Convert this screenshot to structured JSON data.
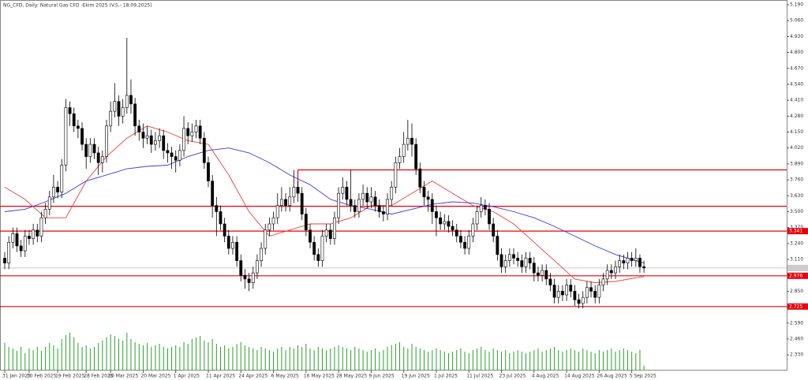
{
  "chart_data": {
    "type": "candlestick",
    "title": "NG_CFD, Daily:  Natural Gas CFD -Ekim 2025 (V.S.- 18.09.2025)",
    "categories": [
      "31 Jan 2025",
      null,
      null,
      null,
      null,
      null,
      "10 Feb 2025",
      null,
      null,
      null,
      null,
      null,
      null,
      "19 Feb 2025",
      null,
      null,
      null,
      null,
      null,
      null,
      "28 Feb 2025",
      null,
      null,
      null,
      null,
      null,
      "10 Mar 2025",
      null,
      null,
      null,
      null,
      null,
      null,
      null,
      "20 Mar 2025",
      null,
      null,
      null,
      null,
      null,
      null,
      null,
      "1 Apr 2025",
      null,
      null,
      null,
      null,
      null,
      null,
      null,
      "11 Apr 2025",
      null,
      null,
      null,
      null,
      null,
      null,
      null,
      "24 Apr 2025",
      null,
      null,
      null,
      null,
      null,
      null,
      null,
      "6 May 2025",
      null,
      null,
      null,
      null,
      null,
      null,
      null,
      "16 May 2025",
      null,
      null,
      null,
      null,
      null,
      null,
      null,
      "28 May 2025",
      null,
      null,
      null,
      null,
      null,
      null,
      null,
      "9 Jun 2025",
      null,
      null,
      null,
      null,
      null,
      null,
      null,
      "19 Jun 2025",
      null,
      null,
      null,
      null,
      null,
      null,
      null,
      "1 Jul 2025",
      null,
      null,
      null,
      null,
      null,
      null,
      null,
      "11 Jul 2025",
      null,
      null,
      null,
      null,
      null,
      null,
      null,
      "23 Jul 2025",
      null,
      null,
      null,
      null,
      null,
      null,
      null,
      "4 Aug 2025",
      null,
      null,
      null,
      null,
      null,
      null,
      null,
      "14 Aug 2025",
      null,
      null,
      null,
      null,
      null,
      null,
      null,
      "26 Aug 2025",
      null,
      null,
      null,
      null,
      null,
      null,
      null,
      "5 Sep 2025",
      null,
      null,
      null
    ],
    "ohlc": [
      [
        3.12,
        3.17,
        3.03,
        3.08
      ],
      [
        3.08,
        3.3,
        3.03,
        3.25
      ],
      [
        3.25,
        3.37,
        3.2,
        3.32
      ],
      [
        3.32,
        3.37,
        3.17,
        3.22
      ],
      [
        3.22,
        3.27,
        3.13,
        3.18
      ],
      [
        3.18,
        3.35,
        3.13,
        3.3
      ],
      [
        3.3,
        3.35,
        3.23,
        3.28
      ],
      [
        3.28,
        3.4,
        3.23,
        3.35
      ],
      [
        3.35,
        3.4,
        3.25,
        3.3
      ],
      [
        3.3,
        3.5,
        3.25,
        3.45
      ],
      [
        3.45,
        3.57,
        3.4,
        3.52
      ],
      [
        3.52,
        3.67,
        3.47,
        3.62
      ],
      [
        3.62,
        3.8,
        3.57,
        3.7
      ],
      [
        3.7,
        3.75,
        3.61,
        3.66
      ],
      [
        3.66,
        3.93,
        3.61,
        3.88
      ],
      [
        3.88,
        4.42,
        3.83,
        4.35
      ],
      [
        4.35,
        4.4,
        4.2,
        4.3
      ],
      [
        4.3,
        4.35,
        4.15,
        4.2
      ],
      [
        4.2,
        4.25,
        4.1,
        4.18
      ],
      [
        4.18,
        4.23,
        4.0,
        4.05
      ],
      [
        4.05,
        4.1,
        3.85,
        3.95
      ],
      [
        3.95,
        4.1,
        3.9,
        4.05
      ],
      [
        4.05,
        4.1,
        3.93,
        3.98
      ],
      [
        3.98,
        4.03,
        3.8,
        3.9
      ],
      [
        3.9,
        4.0,
        3.82,
        3.95
      ],
      [
        3.95,
        4.25,
        3.9,
        4.2
      ],
      [
        4.2,
        4.4,
        4.15,
        4.32
      ],
      [
        4.32,
        4.55,
        4.27,
        4.4
      ],
      [
        4.4,
        4.45,
        4.2,
        4.28
      ],
      [
        4.28,
        4.42,
        4.22,
        4.35
      ],
      [
        4.35,
        4.92,
        4.3,
        4.45
      ],
      [
        4.45,
        4.58,
        4.3,
        4.38
      ],
      [
        4.38,
        4.43,
        4.12,
        4.2
      ],
      [
        4.2,
        4.25,
        4.08,
        4.15
      ],
      [
        4.15,
        4.22,
        4.02,
        4.1
      ],
      [
        4.1,
        4.2,
        4.05,
        4.12
      ],
      [
        4.12,
        4.17,
        3.98,
        4.05
      ],
      [
        4.05,
        4.15,
        4.0,
        4.08
      ],
      [
        4.08,
        4.18,
        4.02,
        4.12
      ],
      [
        4.12,
        4.17,
        3.93,
        4.0
      ],
      [
        4.0,
        4.06,
        3.9,
        3.98
      ],
      [
        3.98,
        4.03,
        3.85,
        3.95
      ],
      [
        3.95,
        4.0,
        3.82,
        3.92
      ],
      [
        3.92,
        4.05,
        3.87,
        4.0
      ],
      [
        4.0,
        4.28,
        3.95,
        4.18
      ],
      [
        4.18,
        4.23,
        4.05,
        4.12
      ],
      [
        4.12,
        4.22,
        4.07,
        4.15
      ],
      [
        4.15,
        4.25,
        4.1,
        4.2
      ],
      [
        4.2,
        4.25,
        4.05,
        4.1
      ],
      [
        4.1,
        4.15,
        3.85,
        3.9
      ],
      [
        3.9,
        3.95,
        3.7,
        3.75
      ],
      [
        3.75,
        3.8,
        3.45,
        3.55
      ],
      [
        3.55,
        3.62,
        3.3,
        3.5
      ],
      [
        3.5,
        3.55,
        3.35,
        3.4
      ],
      [
        3.4,
        3.45,
        3.25,
        3.3
      ],
      [
        3.3,
        3.35,
        3.15,
        3.2
      ],
      [
        3.2,
        3.3,
        3.15,
        3.25
      ],
      [
        3.25,
        3.3,
        3.05,
        3.1
      ],
      [
        3.1,
        3.15,
        2.93,
        2.98
      ],
      [
        2.98,
        3.03,
        2.87,
        2.95
      ],
      [
        2.95,
        3.0,
        2.85,
        2.92
      ],
      [
        2.92,
        3.05,
        2.87,
        3.0
      ],
      [
        3.0,
        3.15,
        2.95,
        3.1
      ],
      [
        3.1,
        3.25,
        3.05,
        3.2
      ],
      [
        3.2,
        3.4,
        3.15,
        3.35
      ],
      [
        3.35,
        3.45,
        3.3,
        3.4
      ],
      [
        3.4,
        3.5,
        3.35,
        3.45
      ],
      [
        3.45,
        3.65,
        3.4,
        3.55
      ],
      [
        3.55,
        3.7,
        3.5,
        3.6
      ],
      [
        3.6,
        3.65,
        3.5,
        3.55
      ],
      [
        3.55,
        3.7,
        3.5,
        3.62
      ],
      [
        3.62,
        3.84,
        3.57,
        3.7
      ],
      [
        3.7,
        3.75,
        3.58,
        3.65
      ],
      [
        3.65,
        3.7,
        3.43,
        3.48
      ],
      [
        3.48,
        3.53,
        3.3,
        3.35
      ],
      [
        3.35,
        3.4,
        3.2,
        3.25
      ],
      [
        3.25,
        3.3,
        3.1,
        3.15
      ],
      [
        3.15,
        3.2,
        3.05,
        3.1
      ],
      [
        3.1,
        3.35,
        3.05,
        3.3
      ],
      [
        3.3,
        3.4,
        3.25,
        3.35
      ],
      [
        3.35,
        3.4,
        3.23,
        3.28
      ],
      [
        3.28,
        3.5,
        3.23,
        3.45
      ],
      [
        3.45,
        3.7,
        3.4,
        3.65
      ],
      [
        3.65,
        3.78,
        3.6,
        3.7
      ],
      [
        3.7,
        3.75,
        3.55,
        3.6
      ],
      [
        3.6,
        3.84,
        3.5,
        3.55
      ],
      [
        3.55,
        3.6,
        3.45,
        3.5
      ],
      [
        3.5,
        3.65,
        3.45,
        3.6
      ],
      [
        3.6,
        3.72,
        3.55,
        3.65
      ],
      [
        3.65,
        3.7,
        3.53,
        3.58
      ],
      [
        3.58,
        3.7,
        3.53,
        3.62
      ],
      [
        3.62,
        3.67,
        3.5,
        3.55
      ],
      [
        3.55,
        3.6,
        3.45,
        3.5
      ],
      [
        3.5,
        3.55,
        3.42,
        3.48
      ],
      [
        3.48,
        3.65,
        3.43,
        3.6
      ],
      [
        3.6,
        3.75,
        3.55,
        3.7
      ],
      [
        3.7,
        3.95,
        3.65,
        3.9
      ],
      [
        3.9,
        4.02,
        3.85,
        3.95
      ],
      [
        3.95,
        4.15,
        3.9,
        4.05
      ],
      [
        4.05,
        4.25,
        4.0,
        4.1
      ],
      [
        4.1,
        4.22,
        3.95,
        4.05
      ],
      [
        4.05,
        4.1,
        3.8,
        3.85
      ],
      [
        3.85,
        3.9,
        3.65,
        3.7
      ],
      [
        3.7,
        3.75,
        3.55,
        3.62
      ],
      [
        3.62,
        3.67,
        3.5,
        3.6
      ],
      [
        3.6,
        3.65,
        3.4,
        3.5
      ],
      [
        3.5,
        3.55,
        3.3,
        3.45
      ],
      [
        3.45,
        3.5,
        3.35,
        3.4
      ],
      [
        3.4,
        3.48,
        3.35,
        3.42
      ],
      [
        3.42,
        3.47,
        3.33,
        3.38
      ],
      [
        3.38,
        3.43,
        3.3,
        3.35
      ],
      [
        3.35,
        3.4,
        3.25,
        3.3
      ],
      [
        3.3,
        3.35,
        3.2,
        3.25
      ],
      [
        3.25,
        3.3,
        3.15,
        3.2
      ],
      [
        3.2,
        3.35,
        3.15,
        3.3
      ],
      [
        3.3,
        3.45,
        3.25,
        3.4
      ],
      [
        3.4,
        3.55,
        3.35,
        3.5
      ],
      [
        3.5,
        3.62,
        3.45,
        3.55
      ],
      [
        3.55,
        3.6,
        3.47,
        3.52
      ],
      [
        3.52,
        3.57,
        3.35,
        3.4
      ],
      [
        3.4,
        3.45,
        3.25,
        3.3
      ],
      [
        3.3,
        3.35,
        3.1,
        3.15
      ],
      [
        3.15,
        3.2,
        3.0,
        3.05
      ],
      [
        3.05,
        3.15,
        3.0,
        3.1
      ],
      [
        3.1,
        3.2,
        3.05,
        3.15
      ],
      [
        3.15,
        3.2,
        3.07,
        3.12
      ],
      [
        3.12,
        3.17,
        3.05,
        3.1
      ],
      [
        3.1,
        3.15,
        3.0,
        3.05
      ],
      [
        3.05,
        3.17,
        3.0,
        3.12
      ],
      [
        3.12,
        3.17,
        3.03,
        3.08
      ],
      [
        3.08,
        3.13,
        2.93,
        3.0
      ],
      [
        3.0,
        3.05,
        2.93,
        2.98
      ],
      [
        2.98,
        3.07,
        2.93,
        3.02
      ],
      [
        3.02,
        3.07,
        2.9,
        2.95
      ],
      [
        2.95,
        3.0,
        2.85,
        2.9
      ],
      [
        2.9,
        2.95,
        2.75,
        2.8
      ],
      [
        2.8,
        2.9,
        2.75,
        2.85
      ],
      [
        2.85,
        2.9,
        2.77,
        2.82
      ],
      [
        2.82,
        2.95,
        2.77,
        2.9
      ],
      [
        2.9,
        2.95,
        2.8,
        2.85
      ],
      [
        2.85,
        2.9,
        2.73,
        2.78
      ],
      [
        2.78,
        2.83,
        2.71,
        2.75
      ],
      [
        2.75,
        2.85,
        2.71,
        2.8
      ],
      [
        2.8,
        2.93,
        2.75,
        2.88
      ],
      [
        2.88,
        2.93,
        2.8,
        2.85
      ],
      [
        2.85,
        2.9,
        2.75,
        2.8
      ],
      [
        2.8,
        2.95,
        2.75,
        2.9
      ],
      [
        2.9,
        3.0,
        2.85,
        2.95
      ],
      [
        2.95,
        3.07,
        2.9,
        3.02
      ],
      [
        3.02,
        3.07,
        2.95,
        3.0
      ],
      [
        3.0,
        3.1,
        2.95,
        3.05
      ],
      [
        3.05,
        3.15,
        3.0,
        3.1
      ],
      [
        3.1,
        3.15,
        3.03,
        3.08
      ],
      [
        3.08,
        3.17,
        3.03,
        3.12
      ],
      [
        3.12,
        3.17,
        3.05,
        3.1
      ],
      [
        3.1,
        3.2,
        3.05,
        3.12
      ],
      [
        3.12,
        3.15,
        3.0,
        3.05
      ],
      [
        3.05,
        3.1,
        3.0,
        3.04
      ]
    ],
    "up_color": "#ffffff",
    "down_color": "#000000",
    "volumes": [
      35,
      30,
      28,
      25,
      30,
      22,
      28,
      26,
      30,
      25,
      30,
      35,
      32,
      28,
      40,
      45,
      48,
      42,
      35,
      30,
      32,
      28,
      30,
      35,
      38,
      42,
      46,
      44,
      40,
      38,
      48,
      40,
      36,
      34,
      32,
      35,
      30,
      32,
      34,
      30,
      28,
      30,
      32,
      30,
      36,
      34,
      40,
      42,
      44,
      38,
      36,
      40,
      34,
      30,
      32,
      28,
      30,
      34,
      36,
      32,
      30,
      28,
      26,
      30,
      28,
      26,
      24,
      28,
      30,
      26,
      30,
      28,
      32,
      30,
      34,
      28,
      26,
      30,
      28,
      26,
      28,
      30,
      32,
      30,
      28,
      26,
      30,
      28,
      26,
      24,
      26,
      28,
      24,
      26,
      30,
      32,
      34,
      36,
      30,
      28,
      34,
      30,
      28,
      26,
      24,
      26,
      28,
      26,
      24,
      22,
      24,
      26,
      28,
      24,
      22,
      26,
      28,
      30,
      26,
      24,
      28,
      26,
      24,
      26,
      22,
      24,
      26,
      24,
      22,
      24,
      26,
      28,
      24,
      26,
      28,
      30,
      26,
      24,
      26,
      28,
      26,
      24,
      28,
      26,
      24,
      22,
      26,
      24,
      26,
      28,
      24,
      26,
      28,
      26,
      24,
      22,
      26,
      6
    ],
    "volume_color": "#2e9e2e",
    "ylim": [
      2.202,
      5.229
    ],
    "yticks": [
      {
        "value": 5.19,
        "label": "5.190"
      },
      {
        "value": 5.06,
        "label": "5.060"
      },
      {
        "value": 4.93,
        "label": "4.930"
      },
      {
        "value": 4.8,
        "label": "4.800"
      },
      {
        "value": 4.67,
        "label": "4.670"
      },
      {
        "value": 4.54,
        "label": "4.540"
      },
      {
        "value": 4.41,
        "label": "4.410"
      },
      {
        "value": 4.28,
        "label": "4.280"
      },
      {
        "value": 4.15,
        "label": "4.150"
      },
      {
        "value": 4.02,
        "label": "4.020"
      },
      {
        "value": 3.89,
        "label": "3.890"
      },
      {
        "value": 3.76,
        "label": "3.760"
      },
      {
        "value": 3.63,
        "label": "3.630"
      },
      {
        "value": 3.5,
        "label": "3.500"
      },
      {
        "value": 3.37,
        "label": "3.370"
      },
      {
        "value": 3.24,
        "label": "3.240"
      },
      {
        "value": 3.11,
        "label": "3.110"
      },
      {
        "value": 2.98,
        "label": "2.980"
      },
      {
        "value": 2.85,
        "label": "2.850"
      },
      {
        "value": 2.72,
        "label": "2.720"
      },
      {
        "value": 2.59,
        "label": "2.590"
      },
      {
        "value": 2.46,
        "label": "2.460"
      },
      {
        "value": 2.33,
        "label": "2.330"
      }
    ],
    "moving_averages": [
      {
        "color": "#e8413b",
        "x": [
          0,
          5,
          10,
          15,
          20,
          25,
          30,
          35,
          40,
          45,
          50,
          55,
          60,
          65,
          70,
          75,
          80,
          85,
          90,
          95,
          100,
          105,
          110,
          115,
          120,
          125,
          130,
          135,
          140,
          145,
          150,
          155,
          157
        ],
        "values": [
          3.7,
          3.6,
          3.45,
          3.45,
          3.75,
          3.95,
          4.1,
          4.2,
          4.15,
          4.08,
          4.05,
          3.8,
          3.5,
          3.3,
          3.35,
          3.4,
          3.4,
          3.45,
          3.55,
          3.55,
          3.65,
          3.75,
          3.65,
          3.55,
          3.5,
          3.4,
          3.25,
          3.1,
          2.95,
          2.92,
          2.93,
          2.96,
          2.97
        ]
      },
      {
        "color": "#3b3bdb",
        "x": [
          0,
          5,
          10,
          15,
          20,
          25,
          30,
          35,
          40,
          45,
          50,
          55,
          60,
          65,
          70,
          75,
          80,
          85,
          90,
          95,
          100,
          105,
          110,
          115,
          120,
          125,
          130,
          135,
          140,
          145,
          150,
          155,
          157
        ],
        "values": [
          3.5,
          3.52,
          3.58,
          3.65,
          3.75,
          3.8,
          3.85,
          3.87,
          3.88,
          3.95,
          4.0,
          4.02,
          3.98,
          3.9,
          3.8,
          3.72,
          3.6,
          3.55,
          3.52,
          3.48,
          3.52,
          3.56,
          3.58,
          3.57,
          3.54,
          3.5,
          3.45,
          3.38,
          3.3,
          3.22,
          3.15,
          3.1,
          3.08
        ]
      }
    ],
    "rectangle": {
      "start": 72,
      "top": 3.841,
      "bottom": 3.7
    },
    "levels": [
      3.544,
      {
        "value": 3.341,
        "label": "3.341"
      },
      {
        "value": 2.976,
        "label": "2.976"
      },
      {
        "value": 2.725,
        "label": "2.725"
      }
    ],
    "level_color": "#e8000b"
  }
}
